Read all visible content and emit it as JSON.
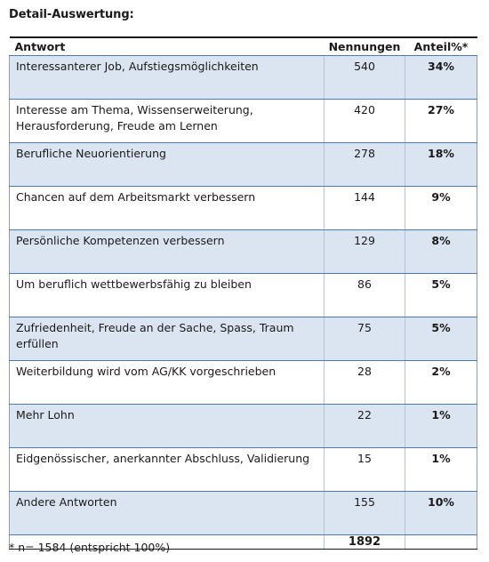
{
  "title": "Detail-Auswertung:",
  "table": {
    "headers": {
      "answer": "Antwort",
      "count": "Nennungen",
      "share": "Anteil%*"
    },
    "rows": [
      {
        "answer": "Interessanterer Job, Aufstiegsmöglichkeiten",
        "count": "540",
        "share": "34%"
      },
      {
        "answer": "Interesse am Thema, Wissenserweiterung, Herausforderung, Freude am Lernen",
        "count": "420",
        "share": "27%"
      },
      {
        "answer": "Berufliche Neuorientierung",
        "count": "278",
        "share": "18%"
      },
      {
        "answer": "Chancen auf dem Arbeitsmarkt verbessern",
        "count": "144",
        "share": "9%"
      },
      {
        "answer": "Persönliche Kompetenzen verbessern",
        "count": "129",
        "share": "8%"
      },
      {
        "answer": "Um beruflich wettbewerbsfähig zu bleiben",
        "count": "86",
        "share": "5%"
      },
      {
        "answer": "Zufriedenheit, Freude an der Sache, Spass, Traum erfüllen",
        "count": "75",
        "share": "5%"
      },
      {
        "answer": "Weiterbildung wird vom AG/KK vorgeschrieben",
        "count": "28",
        "share": "2%"
      },
      {
        "answer": "Mehr Lohn",
        "count": "22",
        "share": "1%"
      },
      {
        "answer": "Eidgenössischer, anerkannter Abschluss, Validierung",
        "count": "15",
        "share": "1%"
      },
      {
        "answer": "Andere Antworten",
        "count": "155",
        "share": "10%"
      }
    ],
    "total": "1892"
  },
  "footnote": "* n= 1584 (entspricht 100%)",
  "colors": {
    "row_shade": "#dbe5f1",
    "rule": "#4d78b4"
  }
}
